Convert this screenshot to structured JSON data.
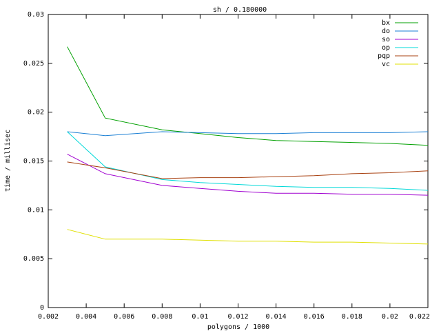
{
  "chart_data": {
    "type": "line",
    "title": "sh / 0.180000",
    "xlabel": "polygons / 1000",
    "ylabel": "time / millisec",
    "xlim": [
      0.002,
      0.022
    ],
    "ylim": [
      0,
      0.03
    ],
    "xticks": [
      "0.002",
      "0.004",
      "0.006",
      "0.008",
      "0.01",
      "0.012",
      "0.014",
      "0.016",
      "0.018",
      "0.02",
      "0.022"
    ],
    "yticks": [
      "0",
      "0.005",
      "0.01",
      "0.015",
      "0.02",
      "0.025",
      "0.03"
    ],
    "grid": false,
    "legend_position": "top-right",
    "x": [
      0.003,
      0.005,
      0.008,
      0.01,
      0.012,
      0.014,
      0.016,
      0.018,
      0.02,
      0.022
    ],
    "series": [
      {
        "name": "bx",
        "color": "#00a000",
        "values": [
          0.0267,
          0.0194,
          0.0182,
          0.0178,
          0.0174,
          0.0171,
          0.017,
          0.0169,
          0.0168,
          0.0166
        ]
      },
      {
        "name": "do",
        "color": "#1a7fd4",
        "values": [
          0.018,
          0.0176,
          0.018,
          0.0179,
          0.0178,
          0.0178,
          0.0179,
          0.0179,
          0.0179,
          0.018
        ]
      },
      {
        "name": "so",
        "color": "#a000d0",
        "values": [
          0.0157,
          0.0137,
          0.0125,
          0.0122,
          0.0119,
          0.0117,
          0.0117,
          0.0116,
          0.0116,
          0.0115
        ]
      },
      {
        "name": "op",
        "color": "#00d8d8",
        "values": [
          0.018,
          0.0144,
          0.0131,
          0.0128,
          0.0126,
          0.0124,
          0.0123,
          0.0123,
          0.0122,
          0.012
        ]
      },
      {
        "name": "pqp",
        "color": "#a84010",
        "values": [
          0.0149,
          0.0143,
          0.0132,
          0.0133,
          0.0133,
          0.0134,
          0.0135,
          0.0137,
          0.0138,
          0.014
        ]
      },
      {
        "name": "vc",
        "color": "#e0e000",
        "values": [
          0.008,
          0.007,
          0.007,
          0.0069,
          0.0068,
          0.0068,
          0.0067,
          0.0067,
          0.0066,
          0.0065
        ]
      }
    ]
  }
}
